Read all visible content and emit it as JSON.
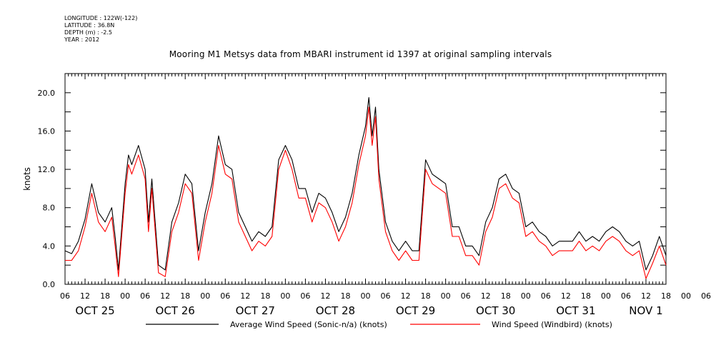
{
  "header": {
    "longitude": "LONGITUDE : 122W(-122)",
    "latitude": "LATITUDE : 36.8N",
    "depth": "DEPTH (m) : -2.5",
    "year": "YEAR : 2012"
  },
  "chart_data": {
    "type": "line",
    "title": "Mooring M1 Metsys data from MBARI instrument id 1397 at original sampling intervals",
    "xlabel": "",
    "ylabel": "knots",
    "x_unit": "hours since OCT 25 00:00 (2012)",
    "xlim": [
      6,
      186
    ],
    "ylim": [
      0,
      22
    ],
    "yticks": [
      0,
      4,
      8,
      12,
      16,
      20
    ],
    "ytick_labels": [
      "0.0",
      "4.0",
      "8.0",
      "12.0",
      "16.0",
      "20.0"
    ],
    "xtick_hour_labels": [
      "06",
      "12",
      "18",
      "00",
      "06",
      "12",
      "18",
      "00",
      "06",
      "12",
      "18",
      "00",
      "06",
      "12",
      "18",
      "00",
      "06",
      "12",
      "18",
      "00",
      "06",
      "12",
      "18",
      "00",
      "06",
      "12",
      "18",
      "00",
      "06",
      "12",
      "18",
      "00",
      "06"
    ],
    "date_labels": [
      "OCT 25",
      "OCT 26",
      "OCT 27",
      "OCT 28",
      "OCT 29",
      "OCT 30",
      "OCT 31",
      "NOV 1"
    ],
    "date_label_hours": [
      15,
      39,
      63,
      87,
      111,
      135,
      159,
      180
    ],
    "grid": false,
    "legend_position": "bottom",
    "series": [
      {
        "name": "Average Wind Speed (Sonic-n/a) (knots)",
        "color": "#000000",
        "x": [
          6,
          8,
          10,
          12,
          14,
          15,
          16,
          18,
          20,
          21,
          22,
          24,
          25,
          26,
          28,
          30,
          31,
          32,
          34,
          36,
          38,
          40,
          42,
          44,
          46,
          48,
          50,
          52,
          54,
          56,
          58,
          60,
          62,
          64,
          66,
          68,
          70,
          72,
          74,
          76,
          78,
          80,
          82,
          84,
          86,
          88,
          90,
          92,
          94,
          96,
          97,
          98,
          99,
          100,
          102,
          104,
          106,
          108,
          110,
          112,
          114,
          116,
          118,
          120,
          122,
          124,
          126,
          128,
          130,
          132,
          134,
          136,
          138,
          140,
          142,
          144,
          146,
          148,
          150,
          152,
          154,
          156,
          158,
          160,
          162,
          164,
          166,
          168,
          170,
          172,
          174,
          176,
          178,
          180,
          182,
          184,
          186
        ],
        "y": [
          3.5,
          3.2,
          4.5,
          6.8,
          10.5,
          9.0,
          7.5,
          6.5,
          8.0,
          5.0,
          1.5,
          10.5,
          13.5,
          12.5,
          14.5,
          12.0,
          6.5,
          11.0,
          2.0,
          1.5,
          6.5,
          8.5,
          11.5,
          10.5,
          3.5,
          7.5,
          10.5,
          15.5,
          12.5,
          12.0,
          7.5,
          6.0,
          4.5,
          5.5,
          5.0,
          6.0,
          13.0,
          14.5,
          13.0,
          10.0,
          10.0,
          7.5,
          9.5,
          9.0,
          7.5,
          5.5,
          7.0,
          9.5,
          13.5,
          16.5,
          19.5,
          15.5,
          18.5,
          12.0,
          6.5,
          4.5,
          3.5,
          4.5,
          3.5,
          3.5,
          13.0,
          11.5,
          11.0,
          10.5,
          6.0,
          6.0,
          4.0,
          4.0,
          3.0,
          6.5,
          8.0,
          11.0,
          11.5,
          10.0,
          9.5,
          6.0,
          6.5,
          5.5,
          5.0,
          4.0,
          4.5,
          4.5,
          4.5,
          5.5,
          4.5,
          5.0,
          4.5,
          5.5,
          6.0,
          5.5,
          4.5,
          4.0,
          4.5,
          1.5,
          3.0,
          5.0,
          3.0
        ]
      },
      {
        "name": "Wind Speed (Windbird) (knots)",
        "color": "#ff0000",
        "x": [
          6,
          8,
          10,
          12,
          14,
          15,
          16,
          18,
          20,
          21,
          22,
          24,
          25,
          26,
          28,
          30,
          31,
          32,
          34,
          36,
          38,
          40,
          42,
          44,
          46,
          48,
          50,
          52,
          54,
          56,
          58,
          60,
          62,
          64,
          66,
          68,
          70,
          72,
          74,
          76,
          78,
          80,
          82,
          84,
          86,
          88,
          90,
          92,
          94,
          96,
          97,
          98,
          99,
          100,
          102,
          104,
          106,
          108,
          110,
          112,
          114,
          116,
          118,
          120,
          122,
          124,
          126,
          128,
          130,
          132,
          134,
          136,
          138,
          140,
          142,
          144,
          146,
          148,
          150,
          152,
          154,
          156,
          158,
          160,
          162,
          164,
          166,
          168,
          170,
          172,
          174,
          176,
          178,
          180,
          182,
          184,
          186
        ],
        "y": [
          2.5,
          2.5,
          3.5,
          6.0,
          9.5,
          8.0,
          6.5,
          5.5,
          7.0,
          4.0,
          0.8,
          9.5,
          12.5,
          11.5,
          13.5,
          11.0,
          5.5,
          10.0,
          1.2,
          0.8,
          5.5,
          7.5,
          10.5,
          9.5,
          2.5,
          6.5,
          9.5,
          14.5,
          11.5,
          11.0,
          6.5,
          5.0,
          3.5,
          4.5,
          4.0,
          5.0,
          12.0,
          14.0,
          12.0,
          9.0,
          9.0,
          6.5,
          8.5,
          8.0,
          6.5,
          4.5,
          6.0,
          8.5,
          12.5,
          15.5,
          18.5,
          14.5,
          17.5,
          11.0,
          5.5,
          3.5,
          2.5,
          3.5,
          2.5,
          2.5,
          12.0,
          10.5,
          10.0,
          9.5,
          5.0,
          5.0,
          3.0,
          3.0,
          2.0,
          5.5,
          7.0,
          10.0,
          10.5,
          9.0,
          8.5,
          5.0,
          5.5,
          4.5,
          4.0,
          3.0,
          3.5,
          3.5,
          3.5,
          4.5,
          3.5,
          4.0,
          3.5,
          4.5,
          5.0,
          4.5,
          3.5,
          3.0,
          3.5,
          0.6,
          2.2,
          4.0,
          2.0
        ]
      }
    ]
  }
}
